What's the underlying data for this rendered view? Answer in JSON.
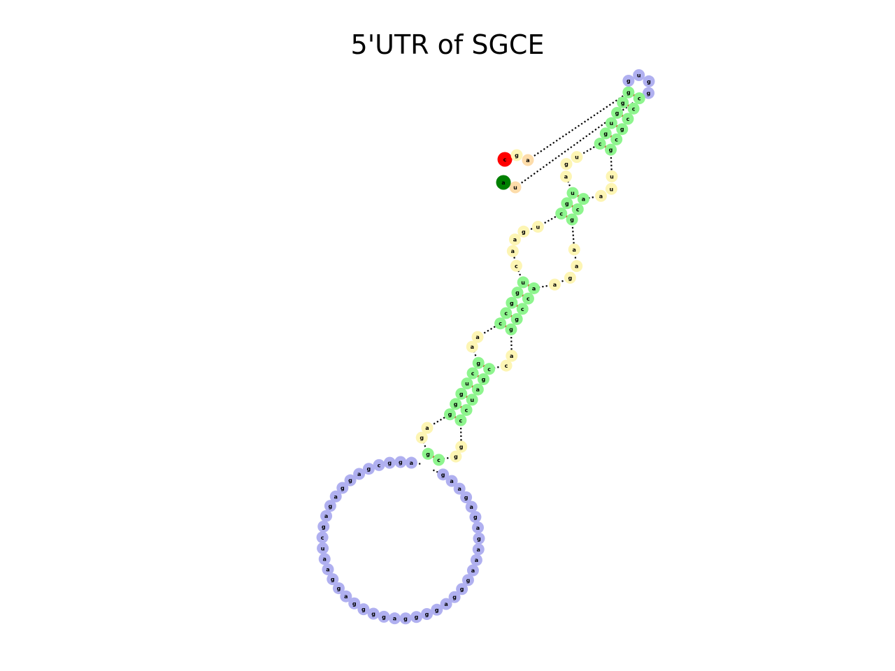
{
  "title": "5'UTR of SGCE",
  "colors": {
    "stem": "#8ef58e",
    "loop": "#fdf5b4",
    "exterior": "#b0b0f0",
    "five_prime": "#ff0000",
    "three_prime": "#008000",
    "unpaired_end": "#fddcaa",
    "pair_bond": "#ff0000",
    "backbone": "#000000"
  },
  "structure": {
    "five_prime_nucleotide": "c",
    "three_prime_nucleotide": "a",
    "five_prime_tail": [
      "c",
      "g",
      "a"
    ],
    "three_prime_tail": [
      "u",
      "a"
    ],
    "regions": [
      {
        "type": "stem",
        "pairs": [
          [
            "g",
            "c"
          ],
          [
            "g",
            "c"
          ],
          [
            "g",
            "c"
          ],
          [
            "u",
            "g"
          ]
        ]
      },
      {
        "type": "hairpin",
        "sequence": [
          "g",
          "u",
          "g",
          "g"
        ]
      },
      {
        "type": "stem",
        "pairs": [
          [
            "g",
            "c"
          ],
          [
            "c",
            "g"
          ]
        ]
      },
      {
        "type": "internal_loop",
        "left": [
          "u",
          "g",
          "a"
        ],
        "right": [
          "u",
          "u",
          "a"
        ]
      },
      {
        "type": "stem",
        "pairs": [
          [
            "u",
            "a"
          ],
          [
            "g",
            "c"
          ],
          [
            "c",
            "g"
          ]
        ]
      },
      {
        "type": "internal_loop",
        "left": [
          "u",
          "g",
          "a",
          "a",
          "c"
        ],
        "right": [
          "a",
          "a",
          "g",
          "a"
        ]
      },
      {
        "type": "stem",
        "pairs": [
          [
            "u",
            "a"
          ],
          [
            "g",
            "c"
          ],
          [
            "g",
            "c"
          ],
          [
            "c",
            "g"
          ],
          [
            "c",
            "g"
          ]
        ]
      },
      {
        "type": "internal_loop",
        "left": [
          "a",
          "a"
        ],
        "right": [
          "a",
          "c"
        ]
      },
      {
        "type": "stem",
        "pairs": [
          [
            "g",
            "c"
          ],
          [
            "c",
            "g"
          ],
          [
            "u",
            "a"
          ],
          [
            "g",
            "u"
          ],
          [
            "g",
            "c"
          ],
          [
            "g",
            "c"
          ]
        ]
      },
      {
        "type": "internal_loop",
        "left": [
          "a",
          "g"
        ],
        "right": [
          "g",
          "g"
        ]
      },
      {
        "type": "stem",
        "pairs": [
          [
            "g",
            "c"
          ]
        ]
      },
      {
        "type": "multiloop",
        "sequence": [
          "g",
          "a",
          "a",
          "g",
          "a",
          "g",
          "a",
          "g",
          "a",
          "a",
          "a",
          "g",
          "g",
          "g",
          "a",
          "g",
          "g",
          "g",
          "g",
          "a",
          "g",
          "g",
          "g",
          "g",
          "a",
          "g",
          "g",
          "a",
          "a",
          "u",
          "c",
          "g",
          "a",
          "g",
          "a",
          "g",
          "g",
          "a",
          "g",
          "c",
          "g",
          "g",
          "a"
        ]
      }
    ]
  }
}
